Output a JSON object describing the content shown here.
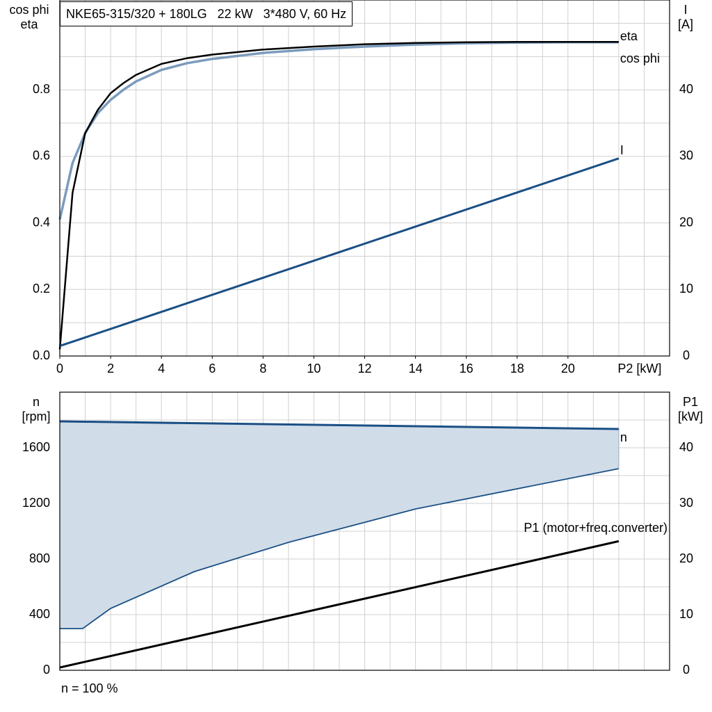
{
  "title": "NKE65-315/320 + 180LG   22 kW   3*480 V, 60 Hz",
  "footer": "n = 100 %",
  "top_left_axis": {
    "line1": "cos phi",
    "line2": "eta"
  },
  "top_right_axis": {
    "line1": "I",
    "line2": "[A]"
  },
  "bottom_left_axis": {
    "line1": "n",
    "line2": "[rpm]"
  },
  "bottom_right_axis": {
    "line1": "P1",
    "line2": "[kW]"
  },
  "colors": {
    "eta": "#000000",
    "cos_phi": "#7b9bbd",
    "I": "#1a4f85",
    "n": "#1a4f85",
    "n_fill": "#d0dce8",
    "P1": "#000000",
    "grid": "#d0d0d0"
  },
  "chart_data": [
    {
      "type": "line",
      "xlabel": "P2 [kW]",
      "xlim": [
        0,
        24
      ],
      "xticks": [
        "0",
        "2",
        "4",
        "6",
        "8",
        "10",
        "12",
        "14",
        "16",
        "18",
        "20"
      ],
      "y_left": {
        "label": "cos phi / eta",
        "lim": [
          0,
          1.07
        ],
        "ticks": [
          "0.0",
          "0.2",
          "0.4",
          "0.6",
          "0.8"
        ],
        "tick_values": [
          0,
          0.2,
          0.4,
          0.6,
          0.8
        ]
      },
      "y_right": {
        "label": "I [A]",
        "lim": [
          0,
          53.5
        ],
        "ticks": [
          "0",
          "10",
          "20",
          "30",
          "40"
        ],
        "tick_values": [
          0,
          10,
          20,
          30,
          40
        ]
      },
      "grid": true,
      "series": [
        {
          "name": "eta",
          "axis": "left",
          "x": [
            0,
            0.5,
            1,
            1.5,
            2,
            2.5,
            3,
            4,
            5,
            6,
            8,
            10,
            12,
            14,
            16,
            18,
            20,
            22
          ],
          "values": [
            0.02,
            0.49,
            0.67,
            0.74,
            0.79,
            0.82,
            0.845,
            0.878,
            0.895,
            0.906,
            0.921,
            0.93,
            0.937,
            0.941,
            0.943,
            0.944,
            0.944,
            0.944
          ]
        },
        {
          "name": "cos phi",
          "axis": "left",
          "x": [
            0,
            0.5,
            1,
            1.5,
            2,
            2.5,
            3,
            4,
            5,
            6,
            8,
            10,
            12,
            14,
            16,
            18,
            20,
            22
          ],
          "values": [
            0.41,
            0.58,
            0.67,
            0.73,
            0.77,
            0.8,
            0.825,
            0.86,
            0.88,
            0.893,
            0.911,
            0.922,
            0.93,
            0.936,
            0.94,
            0.942,
            0.943,
            0.943
          ]
        },
        {
          "name": "I",
          "axis": "right",
          "x": [
            0,
            22
          ],
          "values": [
            1.5,
            29.7
          ]
        }
      ]
    },
    {
      "type": "area",
      "x_hidden_ticks": true,
      "xlim": [
        0,
        24
      ],
      "y_left": {
        "label": "n [rpm]",
        "lim": [
          0,
          2000
        ],
        "ticks": [
          "0",
          "400",
          "800",
          "1200",
          "1600"
        ],
        "tick_values": [
          0,
          400,
          800,
          1200,
          1600
        ]
      },
      "y_right": {
        "label": "P1 [kW]",
        "lim": [
          0,
          50
        ],
        "ticks": [
          "0",
          "10",
          "20",
          "30",
          "40"
        ],
        "tick_values": [
          0,
          10,
          20,
          30,
          40
        ]
      },
      "grid": true,
      "series": [
        {
          "name": "n",
          "axis": "left",
          "x": [
            0,
            22
          ],
          "values": [
            1790,
            1735
          ]
        },
        {
          "name": "n_min",
          "axis": "left",
          "x": [
            0,
            0.9,
            2,
            5.3,
            9,
            14,
            22
          ],
          "values": [
            300,
            300,
            445,
            710,
            920,
            1160,
            1450
          ]
        },
        {
          "name": "P1 (motor+freq.converter)",
          "axis": "right",
          "x": [
            0,
            22
          ],
          "values": [
            0.5,
            23.2
          ]
        }
      ]
    }
  ]
}
